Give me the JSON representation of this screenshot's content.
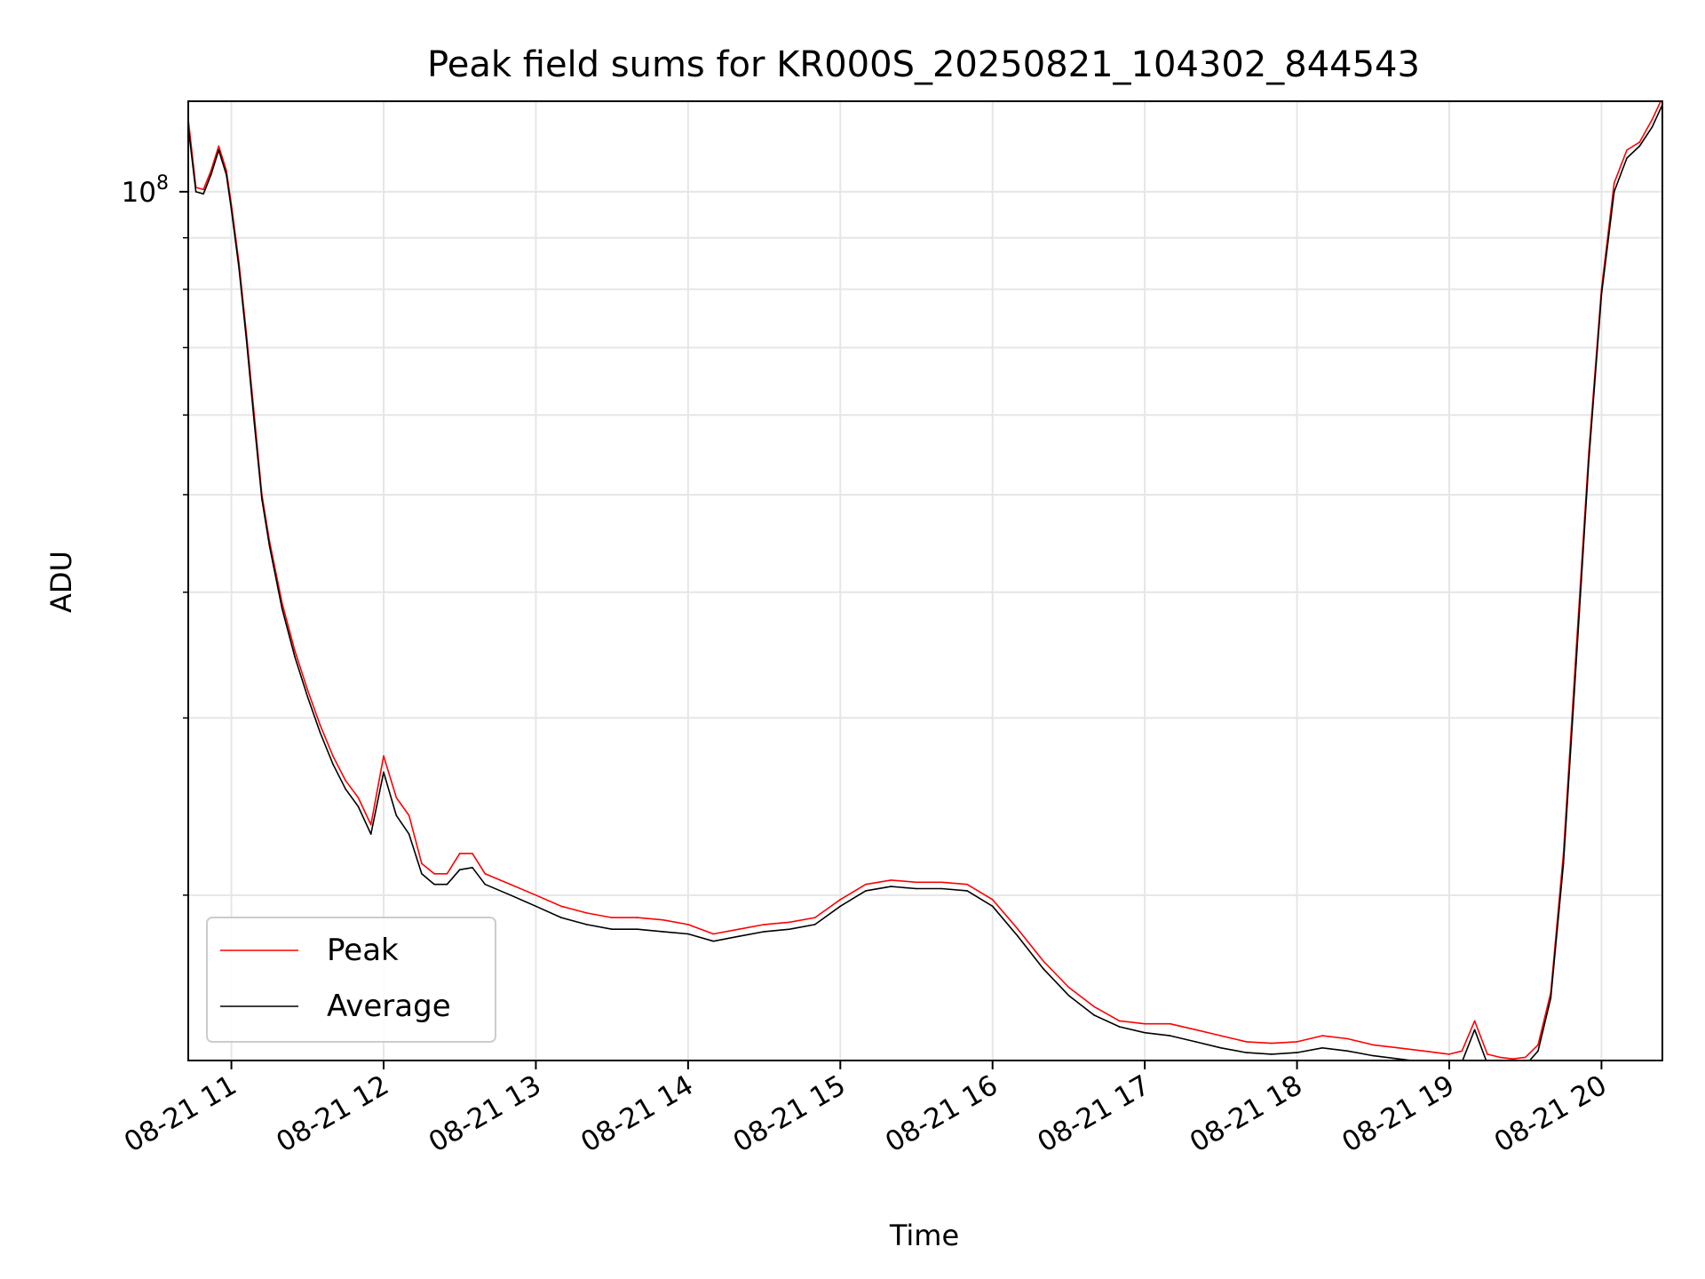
{
  "chart_data": {
    "type": "line",
    "title": "Peak field sums for KR000S_20250821_104302_844543",
    "xlabel": "Time",
    "ylabel": "ADU",
    "yscale": "log",
    "grid": true,
    "legend_position": "lower-left",
    "x_ticks": [
      "08-21 11",
      "08-21 12",
      "08-21 13",
      "08-21 14",
      "08-21 15",
      "08-21 16",
      "08-21 17",
      "08-21 18",
      "08-21 19",
      "08-21 20"
    ],
    "y_major_tick_label": "10^8",
    "y_major_tick_value": 100000000,
    "x_range": [
      "2025-08-21 10:43",
      "2025-08-21 20:24"
    ],
    "ylim": [
      13700000,
      123000000
    ],
    "y_minor_ticks": [
      20000000,
      30000000,
      40000000,
      50000000,
      60000000,
      70000000,
      80000000,
      90000000
    ],
    "series": [
      {
        "name": "Peak",
        "color": "#ff0000",
        "x": [
          "10:43",
          "10:46",
          "10:49",
          "10:52",
          "10:55",
          "10:58",
          "11:00",
          "11:03",
          "11:06",
          "11:09",
          "11:12",
          "11:15",
          "11:20",
          "11:25",
          "11:30",
          "11:35",
          "11:40",
          "11:45",
          "11:50",
          "11:55",
          "12:00",
          "12:05",
          "12:10",
          "12:15",
          "12:20",
          "12:25",
          "12:30",
          "12:35",
          "12:40",
          "12:50",
          "13:00",
          "13:10",
          "13:20",
          "13:30",
          "13:40",
          "13:50",
          "14:00",
          "14:10",
          "14:20",
          "14:30",
          "14:40",
          "14:50",
          "15:00",
          "15:10",
          "15:20",
          "15:30",
          "15:40",
          "15:50",
          "16:00",
          "16:10",
          "16:20",
          "16:30",
          "16:40",
          "16:50",
          "17:00",
          "17:10",
          "17:20",
          "17:30",
          "17:40",
          "17:50",
          "18:00",
          "18:10",
          "18:20",
          "18:30",
          "18:40",
          "18:50",
          "19:00",
          "19:05",
          "19:10",
          "19:15",
          "19:20",
          "19:25",
          "19:30",
          "19:35",
          "19:40",
          "19:45",
          "19:50",
          "19:55",
          "20:00",
          "20:05",
          "20:10",
          "20:15",
          "20:20",
          "20:24"
        ],
        "values": [
          118000000,
          101000000,
          100500000,
          105000000,
          111000000,
          105000000,
          97000000,
          85000000,
          72000000,
          60000000,
          50000000,
          45000000,
          39000000,
          35000000,
          32000000,
          29500000,
          27500000,
          26000000,
          25000000,
          23500000,
          27500000,
          25000000,
          24000000,
          21500000,
          21000000,
          21000000,
          22000000,
          22000000,
          21000000,
          20500000,
          20000000,
          19500000,
          19200000,
          19000000,
          19000000,
          18900000,
          18700000,
          18300000,
          18500000,
          18700000,
          18800000,
          19000000,
          19800000,
          20500000,
          20700000,
          20600000,
          20600000,
          20500000,
          19800000,
          18500000,
          17200000,
          16200000,
          15500000,
          15000000,
          14900000,
          14900000,
          14700000,
          14500000,
          14300000,
          14250000,
          14300000,
          14500000,
          14400000,
          14200000,
          14100000,
          14000000,
          13900000,
          14000000,
          15000000,
          13900000,
          13800000,
          13750000,
          13800000,
          14200000,
          16000000,
          22000000,
          35000000,
          55000000,
          80000000,
          102000000,
          110000000,
          112000000,
          118000000,
          124000000
        ]
      },
      {
        "name": "Average",
        "color": "#000000",
        "x": [
          "10:43",
          "10:46",
          "10:49",
          "10:52",
          "10:55",
          "10:58",
          "11:00",
          "11:03",
          "11:06",
          "11:09",
          "11:12",
          "11:15",
          "11:20",
          "11:25",
          "11:30",
          "11:35",
          "11:40",
          "11:45",
          "11:50",
          "11:55",
          "12:00",
          "12:05",
          "12:10",
          "12:15",
          "12:20",
          "12:25",
          "12:30",
          "12:35",
          "12:40",
          "12:50",
          "13:00",
          "13:10",
          "13:20",
          "13:30",
          "13:40",
          "13:50",
          "14:00",
          "14:10",
          "14:20",
          "14:30",
          "14:40",
          "14:50",
          "15:00",
          "15:10",
          "15:20",
          "15:30",
          "15:40",
          "15:50",
          "16:00",
          "16:10",
          "16:20",
          "16:30",
          "16:40",
          "16:50",
          "17:00",
          "17:10",
          "17:20",
          "17:30",
          "17:40",
          "17:50",
          "18:00",
          "18:10",
          "18:20",
          "18:30",
          "18:40",
          "18:50",
          "19:00",
          "19:05",
          "19:10",
          "19:15",
          "19:20",
          "19:25",
          "19:30",
          "19:35",
          "19:40",
          "19:45",
          "19:50",
          "19:55",
          "20:00",
          "20:05",
          "20:10",
          "20:15",
          "20:20",
          "20:24"
        ],
        "values": [
          116000000,
          100000000,
          99500000,
          104000000,
          110000000,
          104000000,
          96000000,
          84000000,
          71000000,
          59000000,
          49500000,
          44500000,
          38500000,
          34500000,
          31500000,
          29000000,
          27000000,
          25500000,
          24500000,
          23000000,
          26500000,
          24000000,
          23000000,
          21000000,
          20500000,
          20500000,
          21200000,
          21300000,
          20500000,
          20000000,
          19500000,
          19000000,
          18700000,
          18500000,
          18500000,
          18400000,
          18300000,
          18000000,
          18200000,
          18400000,
          18500000,
          18700000,
          19500000,
          20200000,
          20400000,
          20300000,
          20300000,
          20200000,
          19500000,
          18200000,
          16900000,
          15900000,
          15200000,
          14800000,
          14600000,
          14500000,
          14300000,
          14100000,
          13950000,
          13900000,
          13950000,
          14100000,
          14000000,
          13850000,
          13750000,
          13650000,
          13600000,
          13650000,
          14700000,
          13600000,
          13550000,
          13500000,
          13550000,
          14000000,
          15800000,
          21500000,
          34000000,
          54000000,
          79000000,
          100000000,
          108000000,
          111000000,
          116000000,
          122000000
        ]
      }
    ]
  }
}
